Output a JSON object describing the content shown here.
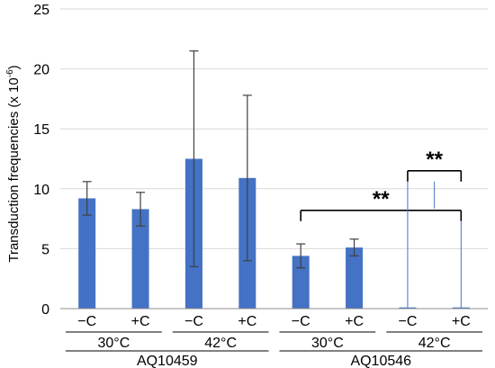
{
  "chart_data": {
    "type": "bar",
    "ylabel_main": "Transduction frequencies (x 10",
    "ylabel_exp": "-6",
    "ylabel_tail": ")",
    "ylim": [
      0,
      25
    ],
    "yticks": [
      0,
      5,
      10,
      15,
      20,
      25
    ],
    "grid": true,
    "categories": [
      "−C",
      "+C",
      "−C",
      "+C",
      "−C",
      "+C",
      "−C",
      "+C"
    ],
    "values": [
      9.2,
      8.3,
      12.5,
      10.9,
      4.4,
      5.1,
      0.1,
      0.1
    ],
    "errors": [
      1.4,
      1.4,
      9.0,
      6.9,
      1.0,
      0.7,
      0,
      0
    ],
    "temperature_groups": [
      {
        "label": "30°C",
        "bars": [
          0,
          1
        ]
      },
      {
        "label": "42°C",
        "bars": [
          2,
          3
        ]
      },
      {
        "label": "30°C",
        "bars": [
          4,
          5
        ]
      },
      {
        "label": "42°C",
        "bars": [
          6,
          7
        ]
      }
    ],
    "strain_groups": [
      {
        "label": "AQ10459",
        "bars": [
          0,
          3
        ]
      },
      {
        "label": "AQ10546",
        "bars": [
          4,
          7
        ]
      }
    ],
    "annotations": [
      {
        "label": "**",
        "from_bar": 4,
        "to_bar": 7,
        "y": 8.2
      },
      {
        "label": "**",
        "from_bar": 6,
        "to_bar": 7,
        "y": 11.5
      }
    ]
  }
}
